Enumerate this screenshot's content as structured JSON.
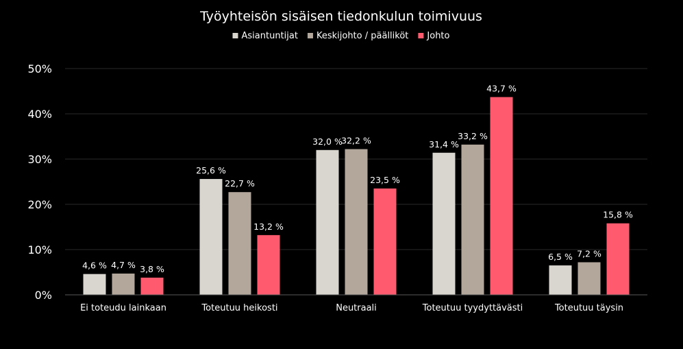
{
  "chart_data": {
    "type": "bar",
    "title": "Työyhteisön sisäisen tiedonkulun toimivuus",
    "xlabel": "",
    "ylabel": "",
    "categories": [
      "Ei toteudu lainkaan",
      "Toteutuu heikosti",
      "Neutraali",
      "Toteutuu tyydyttävästi",
      "Toteutuu täysin"
    ],
    "series": [
      {
        "name": "Asiantuntijat",
        "color": "#d9d6d0",
        "values": [
          4.6,
          25.6,
          32.0,
          31.4,
          6.5
        ],
        "labels": [
          "4,6 %",
          "25,6 %",
          "32,0 %",
          "31,4 %",
          "6,5 %"
        ]
      },
      {
        "name": "Keskijohto / päälliköt",
        "color": "#b3a69b",
        "values": [
          4.7,
          22.7,
          32.2,
          33.2,
          7.2
        ],
        "labels": [
          "4,7 %",
          "22,7 %",
          "32,2 %",
          "33,2 %",
          "7,2 %"
        ]
      },
      {
        "name": "Johto",
        "color": "#ff5a6e",
        "values": [
          3.8,
          13.2,
          23.5,
          43.7,
          15.8
        ],
        "labels": [
          "3,8 %",
          "13,2 %",
          "23,5 %",
          "43,7 %",
          "15,8 %"
        ]
      }
    ],
    "ylim": [
      0,
      50
    ],
    "yticks": [
      "0%",
      "10%",
      "20%",
      "30%",
      "40%",
      "50%"
    ],
    "grid": true,
    "legend": "top-center"
  }
}
